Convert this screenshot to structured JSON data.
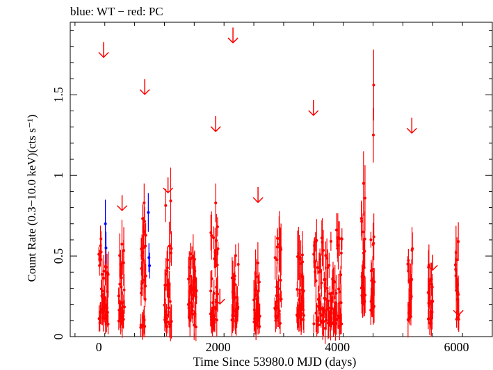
{
  "chart_data": {
    "type": "scatter",
    "title": "blue: WT − red: PC",
    "xlabel": "Time Since 53980.0 MJD (days)",
    "ylabel": "Count Rate (0.3−10.0 keV)(cts s⁻¹)",
    "xlim": [
      -480,
      6600
    ],
    "ylim": [
      0,
      1.95
    ],
    "xticks": [
      0,
      2000,
      4000,
      6000
    ],
    "xtick_labels": [
      "0",
      "2000",
      "4000",
      "6000"
    ],
    "yticks": [
      0,
      0.5,
      1,
      1.5
    ],
    "ytick_labels": [
      "0",
      "0.5",
      "1",
      "1.5"
    ],
    "grid": false,
    "colors": {
      "WT": "#0000ff",
      "PC": "#ff0000"
    },
    "series": [
      {
        "name": "WT",
        "points": [
          {
            "x": 110,
            "y": 0.7,
            "err": 0.15
          },
          {
            "x": 120,
            "y": 0.55,
            "err": 0.1
          },
          {
            "x": 830,
            "y": 0.77,
            "err": 0.12
          },
          {
            "x": 840,
            "y": 0.49,
            "err": 0.09
          },
          {
            "x": 850,
            "y": 0.44,
            "err": 0.08
          }
        ]
      },
      {
        "name": "PC",
        "clusters": [
          {
            "x0": 0,
            "x1": 160,
            "ymin": 0.07,
            "ymax": 0.7,
            "n": 40
          },
          {
            "x0": 330,
            "x1": 430,
            "ymin": 0.07,
            "ymax": 0.65,
            "n": 26
          },
          {
            "x0": 700,
            "x1": 790,
            "ymin": 0.05,
            "ymax": 0.85,
            "n": 28
          },
          {
            "x0": 1100,
            "x1": 1220,
            "ymin": 0.04,
            "ymax": 1.0,
            "n": 30
          },
          {
            "x0": 1500,
            "x1": 1640,
            "ymin": 0.03,
            "ymax": 0.65,
            "n": 34
          },
          {
            "x0": 1870,
            "x1": 2000,
            "ymin": 0.07,
            "ymax": 0.83,
            "n": 32
          },
          {
            "x0": 2230,
            "x1": 2340,
            "ymin": 0.08,
            "ymax": 0.55,
            "n": 26
          },
          {
            "x0": 2600,
            "x1": 2700,
            "ymin": 0.05,
            "ymax": 0.55,
            "n": 26
          },
          {
            "x0": 2950,
            "x1": 3060,
            "ymin": 0.08,
            "ymax": 0.68,
            "n": 28
          },
          {
            "x0": 3320,
            "x1": 3440,
            "ymin": 0.08,
            "ymax": 0.68,
            "n": 30
          },
          {
            "x0": 3600,
            "x1": 4080,
            "ymin": 0.05,
            "ymax": 0.72,
            "n": 90
          },
          {
            "x0": 4400,
            "x1": 4470,
            "ymin": 0.2,
            "ymax": 0.95,
            "n": 22
          },
          {
            "x0": 4560,
            "x1": 4620,
            "ymin": 0.15,
            "ymax": 0.85,
            "n": 20
          },
          {
            "x0": 5180,
            "x1": 5260,
            "ymin": 0.1,
            "ymax": 0.6,
            "n": 20
          },
          {
            "x0": 5520,
            "x1": 5600,
            "ymin": 0.08,
            "ymax": 0.55,
            "n": 20
          },
          {
            "x0": 5980,
            "x1": 6040,
            "ymin": 0.07,
            "ymax": 0.6,
            "n": 16
          }
        ],
        "highlights": [
          {
            "x": 4610,
            "y": 1.56,
            "err": 0.22
          },
          {
            "x": 4605,
            "y": 1.25,
            "err": 0.17
          },
          {
            "x": 4440,
            "y": 0.95,
            "err": 0.2
          },
          {
            "x": 1960,
            "y": 0.83,
            "err": 0.12
          },
          {
            "x": 760,
            "y": 0.83,
            "err": 0.12
          },
          {
            "x": 6030,
            "y": 0.59,
            "err": 0.12
          }
        ],
        "upper_limits": [
          {
            "x": 80,
            "y": 1.78
          },
          {
            "x": 390,
            "y": 0.83
          },
          {
            "x": 770,
            "y": 1.55
          },
          {
            "x": 1160,
            "y": 0.94
          },
          {
            "x": 1960,
            "y": 1.32
          },
          {
            "x": 2250,
            "y": 1.87
          },
          {
            "x": 2670,
            "y": 0.88
          },
          {
            "x": 3600,
            "y": 1.42
          },
          {
            "x": 5250,
            "y": 1.31
          },
          {
            "x": 5600,
            "y": 0.46
          },
          {
            "x": 6030,
            "y": 0.18
          },
          {
            "x": 2030,
            "y": 0.25
          }
        ]
      }
    ]
  }
}
